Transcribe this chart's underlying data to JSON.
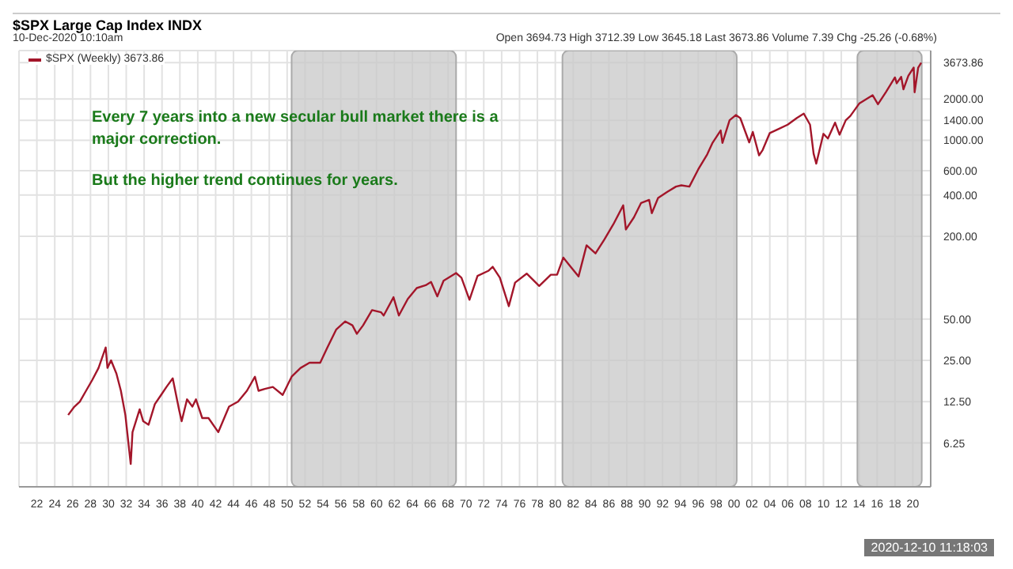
{
  "chart_data": {
    "type": "line",
    "title": "$SPX Large Cap Index INDX",
    "subtitle": "10-Dec-2020 10:10am",
    "annotations": [
      "Open 3694.73  High 3712.39  Low 3645.18  Last 3673.86  Volume 7.39  Chg -25.26 (-0.68%)",
      "Every 7 years into a new secular bull market there is a major correction.",
      "But the higher trend continues for years.",
      "2020-12-10 11:18:03"
    ],
    "series": [
      {
        "name": "$SPX (Weekly) 3673.86",
        "color": "#a3162a",
        "x": [
          1925.5,
          1926.2,
          1926.8,
          1927.5,
          1928.2,
          1928.9,
          1929.7,
          1929.9,
          1930.3,
          1930.9,
          1931.4,
          1931.9,
          1932.5,
          1932.7,
          1933.5,
          1933.9,
          1934.5,
          1935.2,
          1935.9,
          1936.5,
          1937.2,
          1937.9,
          1938.2,
          1938.8,
          1939.4,
          1939.8,
          1940.5,
          1941.2,
          1942.3,
          1943.5,
          1944.5,
          1945.5,
          1946.4,
          1946.8,
          1947.5,
          1948.4,
          1949.5,
          1950.5,
          1951.5,
          1952.5,
          1953.7,
          1954.5,
          1955.5,
          1956.5,
          1957.3,
          1957.8,
          1958.5,
          1959.5,
          1960.5,
          1960.8,
          1961.9,
          1962.5,
          1963.5,
          1964.5,
          1965.5,
          1966.1,
          1966.8,
          1967.5,
          1968.9,
          1969.5,
          1970.4,
          1971.3,
          1972.5,
          1973.0,
          1973.8,
          1974.8,
          1975.5,
          1976.8,
          1978.2,
          1979.5,
          1980.2,
          1980.9,
          1981.5,
          1982.6,
          1983.5,
          1984.5,
          1985.5,
          1986.5,
          1987.6,
          1987.9,
          1988.8,
          1989.6,
          1990.5,
          1990.8,
          1991.5,
          1992.5,
          1993.5,
          1994.1,
          1995.0,
          1996.0,
          1997.0,
          1997.6,
          1998.5,
          1998.7,
          1999.5,
          2000.2,
          2000.7,
          2001.7,
          2002.1,
          2002.8,
          2003.2,
          2004.0,
          2005.0,
          2006.0,
          2007.0,
          2007.8,
          2008.5,
          2008.9,
          2009.2,
          2010.0,
          2010.5,
          2011.3,
          2011.8,
          2012.5,
          2013.0,
          2014.0,
          2015.5,
          2016.1,
          2017.0,
          2018.0,
          2018.2,
          2018.7,
          2018.95,
          2019.5,
          2020.1,
          2020.2,
          2020.6,
          2020.94
        ],
        "values": [
          10,
          11.5,
          12.5,
          15,
          18,
          22,
          31,
          22,
          25,
          20,
          15,
          10,
          4.4,
          7.5,
          11,
          9,
          8.5,
          12,
          14,
          16,
          18.5,
          11,
          9,
          13,
          11.5,
          13,
          9.5,
          9.5,
          7.5,
          11.5,
          12.5,
          15,
          19,
          15,
          15.5,
          16,
          14,
          19,
          22,
          24,
          24,
          31,
          42,
          48,
          45,
          39,
          45,
          58,
          56,
          53,
          72,
          53,
          70,
          84,
          88,
          93,
          73,
          95,
          108,
          100,
          69,
          103,
          112,
          120,
          100,
          62,
          92,
          107,
          87,
          105,
          105,
          140,
          125,
          102,
          172,
          150,
          190,
          245,
          336,
          224,
          275,
          350,
          368,
          295,
          380,
          420,
          460,
          470,
          460,
          615,
          790,
          960,
          1180,
          957,
          1400,
          1527,
          1450,
          965,
          1150,
          777,
          850,
          1130,
          1210,
          1300,
          1450,
          1565,
          1300,
          800,
          676,
          1115,
          1030,
          1345,
          1099,
          1400,
          1500,
          1850,
          2130,
          1829,
          2250,
          2870,
          2600,
          2900,
          2351,
          2950,
          3386,
          2237,
          3380,
          3673.86
        ]
      }
    ],
    "xlim": [
      1920,
      2022
    ],
    "xticks": [
      {
        "value": 1922,
        "label": "22"
      },
      {
        "value": 1924,
        "label": "24"
      },
      {
        "value": 1926,
        "label": "26"
      },
      {
        "value": 1928,
        "label": "28"
      },
      {
        "value": 1930,
        "label": "30"
      },
      {
        "value": 1932,
        "label": "32"
      },
      {
        "value": 1934,
        "label": "34"
      },
      {
        "value": 1936,
        "label": "36"
      },
      {
        "value": 1938,
        "label": "38"
      },
      {
        "value": 1940,
        "label": "40"
      },
      {
        "value": 1942,
        "label": "42"
      },
      {
        "value": 1944,
        "label": "44"
      },
      {
        "value": 1946,
        "label": "46"
      },
      {
        "value": 1948,
        "label": "48"
      },
      {
        "value": 1950,
        "label": "50"
      },
      {
        "value": 1952,
        "label": "52"
      },
      {
        "value": 1954,
        "label": "54"
      },
      {
        "value": 1956,
        "label": "56"
      },
      {
        "value": 1958,
        "label": "58"
      },
      {
        "value": 1960,
        "label": "60"
      },
      {
        "value": 1962,
        "label": "62"
      },
      {
        "value": 1964,
        "label": "64"
      },
      {
        "value": 1966,
        "label": "66"
      },
      {
        "value": 1968,
        "label": "68"
      },
      {
        "value": 1970,
        "label": "70"
      },
      {
        "value": 1972,
        "label": "72"
      },
      {
        "value": 1974,
        "label": "74"
      },
      {
        "value": 1976,
        "label": "76"
      },
      {
        "value": 1978,
        "label": "78"
      },
      {
        "value": 1980,
        "label": "80"
      },
      {
        "value": 1982,
        "label": "82"
      },
      {
        "value": 1984,
        "label": "84"
      },
      {
        "value": 1986,
        "label": "86"
      },
      {
        "value": 1988,
        "label": "88"
      },
      {
        "value": 1990,
        "label": "90"
      },
      {
        "value": 1992,
        "label": "92"
      },
      {
        "value": 1994,
        "label": "94"
      },
      {
        "value": 1996,
        "label": "96"
      },
      {
        "value": 1998,
        "label": "98"
      },
      {
        "value": 2000,
        "label": "00"
      },
      {
        "value": 2002,
        "label": "02"
      },
      {
        "value": 2004,
        "label": "04"
      },
      {
        "value": 2006,
        "label": "06"
      },
      {
        "value": 2008,
        "label": "08"
      },
      {
        "value": 2010,
        "label": "10"
      },
      {
        "value": 2012,
        "label": "12"
      },
      {
        "value": 2014,
        "label": "14"
      },
      {
        "value": 2016,
        "label": "16"
      },
      {
        "value": 2018,
        "label": "18"
      },
      {
        "value": 2020,
        "label": "20"
      }
    ],
    "ylim": [
      3,
      4500
    ],
    "log": "y",
    "yticks": [
      6.25,
      {
        "value": 12.5,
        "label": "12.50"
      },
      {
        "value": 25,
        "label": "25.00"
      },
      {
        "value": 50,
        "label": "50.00"
      },
      {
        "value": 200,
        "label": "200.00"
      },
      {
        "value": 400,
        "label": "400.00"
      },
      {
        "value": 600,
        "label": "600.00"
      },
      {
        "value": 1000,
        "label": "1000.00"
      },
      {
        "value": 1400,
        "label": "1400.00"
      },
      {
        "value": 2000,
        "label": "2000.00"
      },
      3673.86
    ],
    "bands": [
      {
        "axis": "x",
        "from": 1950.5,
        "to": 1968.9,
        "color": "#c8c8c8"
      },
      {
        "axis": "x",
        "from": 1980.8,
        "to": 2000.3,
        "color": "#c8c8c8"
      },
      {
        "axis": "x",
        "from": 2013.8,
        "to": 2021,
        "color": "#c8c8c8"
      }
    ],
    "grid": true,
    "legend": "top left",
    "marker": "none",
    "line_style": "solid"
  }
}
